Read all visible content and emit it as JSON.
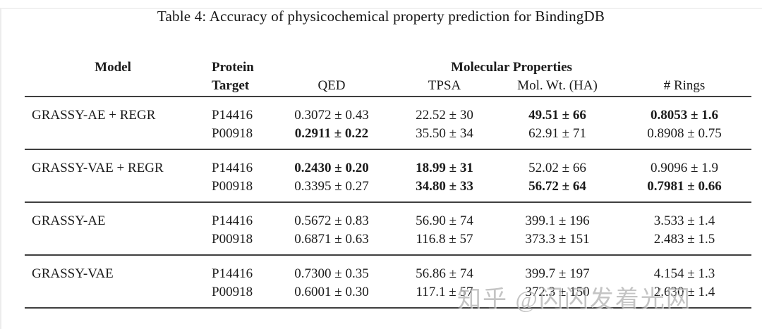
{
  "page": {
    "title": "Table 4: Accuracy of physicochemical property prediction for BindingDB"
  },
  "table": {
    "headers": {
      "model": "Model",
      "protein_line1": "Protein",
      "protein_line2": "Target",
      "group": "Molecular Properties",
      "qed": "QED",
      "tpsa": "TPSA",
      "molwt": "Mol. Wt. (HA)",
      "rings": "# Rings"
    },
    "groups": [
      {
        "model": "GRASSY-AE + REGR",
        "rows": [
          {
            "protein": "P14416",
            "qed": {
              "t": "0.3072 ± 0.43",
              "b": false
            },
            "tpsa": {
              "t": "22.52 ± 30",
              "b": false
            },
            "molwt": {
              "t": "49.51 ± 66",
              "b": true
            },
            "rings": {
              "t": "0.8053 ± 1.6",
              "b": true
            }
          },
          {
            "protein": "P00918",
            "qed": {
              "t": "0.2911 ± 0.22",
              "b": true
            },
            "tpsa": {
              "t": "35.50 ± 34",
              "b": false
            },
            "molwt": {
              "t": "62.91 ± 71",
              "b": false
            },
            "rings": {
              "t": "0.8908 ± 0.75",
              "b": false
            }
          }
        ]
      },
      {
        "model": "GRASSY-VAE + REGR",
        "rows": [
          {
            "protein": "P14416",
            "qed": {
              "t": "0.2430 ± 0.20",
              "b": true
            },
            "tpsa": {
              "t": "18.99 ± 31",
              "b": true
            },
            "molwt": {
              "t": "52.02 ± 66",
              "b": false
            },
            "rings": {
              "t": "0.9096 ± 1.9",
              "b": false
            }
          },
          {
            "protein": "P00918",
            "qed": {
              "t": "0.3395 ± 0.27",
              "b": false
            },
            "tpsa": {
              "t": "34.80 ± 33",
              "b": true
            },
            "molwt": {
              "t": "56.72 ± 64",
              "b": true
            },
            "rings": {
              "t": "0.7981 ± 0.66",
              "b": true
            }
          }
        ]
      },
      {
        "model": "GRASSY-AE",
        "rows": [
          {
            "protein": "P14416",
            "qed": {
              "t": "0.5672 ± 0.83",
              "b": false
            },
            "tpsa": {
              "t": "56.90 ± 74",
              "b": false
            },
            "molwt": {
              "t": "399.1 ± 196",
              "b": false
            },
            "rings": {
              "t": "3.533 ± 1.4",
              "b": false
            }
          },
          {
            "protein": "P00918",
            "qed": {
              "t": "0.6871 ± 0.63",
              "b": false
            },
            "tpsa": {
              "t": "116.8 ± 57",
              "b": false
            },
            "molwt": {
              "t": "373.3 ± 151",
              "b": false
            },
            "rings": {
              "t": "2.483 ± 1.5",
              "b": false
            }
          }
        ]
      },
      {
        "model": "GRASSY-VAE",
        "rows": [
          {
            "protein": "P14416",
            "qed": {
              "t": "0.7300 ± 0.35",
              "b": false
            },
            "tpsa": {
              "t": "56.86 ± 74",
              "b": false
            },
            "molwt": {
              "t": "399.7 ± 197",
              "b": false
            },
            "rings": {
              "t": "4.154 ± 1.3",
              "b": false
            }
          },
          {
            "protein": "P00918",
            "qed": {
              "t": "0.6001 ± 0.30",
              "b": false
            },
            "tpsa": {
              "t": "117.1 ± 57",
              "b": false
            },
            "molwt": {
              "t": "372.3 ± 150",
              "b": false
            },
            "rings": {
              "t": "2.630 ± 1.4",
              "b": false
            }
          }
        ]
      }
    ]
  },
  "watermark": {
    "text": "知乎 @闪闪发着光网",
    "color": "#949494"
  }
}
